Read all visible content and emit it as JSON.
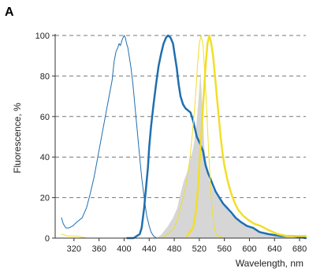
{
  "chart_data": {
    "type": "line",
    "panel_label": "A",
    "xlabel": "Wavelength, nm",
    "ylabel": "Fluorescence, %",
    "xlim": [
      290,
      690
    ],
    "ylim": [
      0,
      100
    ],
    "x_ticks": [
      320,
      360,
      400,
      440,
      480,
      520,
      560,
      600,
      640,
      680
    ],
    "y_ticks": [
      0,
      20,
      40,
      60,
      80,
      100
    ],
    "grid": "horizontal dashed",
    "legend": "none",
    "colors": {
      "dark_blue": "#1f6fb0",
      "yellow": "#f2de2a",
      "fill": "#d6d6d6",
      "grid": "#777777",
      "axis": "#333333"
    },
    "series": [
      {
        "style": "thin-blue-line",
        "color": "#1f6fb0",
        "width": 1,
        "fill": false,
        "points": [
          [
            300,
            10
          ],
          [
            303,
            7
          ],
          [
            307,
            5
          ],
          [
            312,
            5
          ],
          [
            318,
            6
          ],
          [
            325,
            8
          ],
          [
            333,
            10
          ],
          [
            340,
            15
          ],
          [
            346,
            22
          ],
          [
            352,
            30
          ],
          [
            358,
            40
          ],
          [
            364,
            50
          ],
          [
            370,
            60
          ],
          [
            376,
            70
          ],
          [
            381,
            78
          ],
          [
            384,
            87
          ],
          [
            387,
            92
          ],
          [
            390,
            94
          ],
          [
            392,
            96
          ],
          [
            394,
            95
          ],
          [
            397,
            98
          ],
          [
            400,
            100
          ],
          [
            402,
            99
          ],
          [
            404,
            96
          ],
          [
            406,
            94
          ],
          [
            408,
            90
          ],
          [
            411,
            84
          ],
          [
            414,
            76
          ],
          [
            417,
            66
          ],
          [
            420,
            56
          ],
          [
            424,
            43
          ],
          [
            428,
            30
          ],
          [
            432,
            20
          ],
          [
            436,
            11
          ],
          [
            440,
            6
          ],
          [
            443,
            3
          ],
          [
            447,
            1
          ],
          [
            452,
            0
          ]
        ]
      },
      {
        "style": "thick-blue-line",
        "color": "#1f6fb0",
        "width": 2.5,
        "fill": false,
        "points": [
          [
            405,
            0
          ],
          [
            415,
            0
          ],
          [
            420,
            1
          ],
          [
            425,
            2
          ],
          [
            428,
            5
          ],
          [
            432,
            15
          ],
          [
            435,
            25
          ],
          [
            438,
            35
          ],
          [
            440,
            45
          ],
          [
            443,
            55
          ],
          [
            447,
            66
          ],
          [
            451,
            76
          ],
          [
            455,
            85
          ],
          [
            459,
            91
          ],
          [
            463,
            96
          ],
          [
            467,
            99
          ],
          [
            470,
            100
          ],
          [
            474,
            99
          ],
          [
            478,
            96
          ],
          [
            481,
            90
          ],
          [
            484,
            84
          ],
          [
            487,
            76
          ],
          [
            490,
            70
          ],
          [
            494,
            66
          ],
          [
            498,
            64
          ],
          [
            502,
            63
          ],
          [
            506,
            62
          ],
          [
            510,
            58
          ],
          [
            513,
            54
          ],
          [
            516,
            50
          ],
          [
            519,
            48
          ],
          [
            522,
            46
          ],
          [
            526,
            43
          ],
          [
            530,
            36
          ],
          [
            534,
            32
          ],
          [
            538,
            29
          ],
          [
            542,
            26
          ],
          [
            546,
            23
          ],
          [
            552,
            20
          ],
          [
            558,
            17
          ],
          [
            564,
            15
          ],
          [
            570,
            13
          ],
          [
            578,
            10
          ],
          [
            586,
            8
          ],
          [
            596,
            6
          ],
          [
            606,
            5
          ],
          [
            616,
            3
          ],
          [
            630,
            2
          ],
          [
            650,
            1
          ],
          [
            670,
            1
          ],
          [
            690,
            0
          ]
        ]
      },
      {
        "style": "thin-yellow-line",
        "color": "#f2de2a",
        "width": 1,
        "fill": false,
        "points": [
          [
            300,
            2
          ],
          [
            310,
            1
          ],
          [
            325,
            1
          ],
          [
            340,
            0
          ],
          [
            360,
            0
          ],
          [
            380,
            0
          ],
          [
            420,
            0
          ],
          [
            440,
            0
          ],
          [
            460,
            0
          ],
          [
            470,
            2
          ],
          [
            480,
            5
          ],
          [
            486,
            10
          ],
          [
            490,
            15
          ],
          [
            494,
            20
          ],
          [
            498,
            25
          ],
          [
            502,
            32
          ],
          [
            506,
            42
          ],
          [
            510,
            55
          ],
          [
            514,
            70
          ],
          [
            517,
            85
          ],
          [
            520,
            96
          ],
          [
            523,
            100
          ],
          [
            526,
            95
          ],
          [
            529,
            80
          ],
          [
            532,
            62
          ],
          [
            535,
            42
          ],
          [
            538,
            25
          ],
          [
            541,
            12
          ],
          [
            544,
            5
          ],
          [
            547,
            2
          ],
          [
            550,
            1
          ],
          [
            560,
            0
          ],
          [
            600,
            0
          ],
          [
            690,
            0
          ]
        ]
      },
      {
        "style": "thick-yellow-line",
        "color": "#f2de2a",
        "width": 2.5,
        "fill": false,
        "points": [
          [
            500,
            1
          ],
          [
            505,
            3
          ],
          [
            510,
            5
          ],
          [
            514,
            12
          ],
          [
            518,
            25
          ],
          [
            521,
            40
          ],
          [
            524,
            55
          ],
          [
            527,
            70
          ],
          [
            530,
            85
          ],
          [
            533,
            96
          ],
          [
            536,
            100
          ],
          [
            539,
            96
          ],
          [
            542,
            90
          ],
          [
            545,
            80
          ],
          [
            548,
            70
          ],
          [
            551,
            60
          ],
          [
            554,
            50
          ],
          [
            557,
            42
          ],
          [
            560,
            36
          ],
          [
            564,
            30
          ],
          [
            568,
            25
          ],
          [
            572,
            21
          ],
          [
            577,
            17
          ],
          [
            582,
            14
          ],
          [
            590,
            11
          ],
          [
            598,
            9
          ],
          [
            608,
            7
          ],
          [
            618,
            6
          ],
          [
            630,
            4
          ],
          [
            645,
            2
          ],
          [
            660,
            1
          ],
          [
            675,
            1
          ],
          [
            690,
            1
          ]
        ]
      },
      {
        "style": "gray-filled-area",
        "color": "#d6d6d6",
        "width": 0,
        "fill": true,
        "points": [
          [
            452,
            0
          ],
          [
            460,
            2
          ],
          [
            470,
            6
          ],
          [
            478,
            10
          ],
          [
            485,
            15
          ],
          [
            490,
            22
          ],
          [
            495,
            28
          ],
          [
            500,
            32
          ],
          [
            505,
            38
          ],
          [
            510,
            44
          ],
          [
            514,
            52
          ],
          [
            517,
            62
          ],
          [
            519,
            70
          ],
          [
            521,
            78
          ],
          [
            522,
            82
          ],
          [
            524,
            70
          ],
          [
            526,
            58
          ],
          [
            528,
            45
          ],
          [
            530,
            35
          ],
          [
            534,
            30
          ],
          [
            538,
            27
          ],
          [
            542,
            24
          ],
          [
            548,
            21
          ],
          [
            555,
            18
          ],
          [
            562,
            15
          ],
          [
            570,
            12
          ],
          [
            580,
            9
          ],
          [
            592,
            7
          ],
          [
            605,
            5
          ],
          [
            620,
            3
          ],
          [
            640,
            1
          ],
          [
            665,
            1
          ],
          [
            690,
            1
          ],
          [
            690,
            0
          ]
        ]
      }
    ]
  }
}
